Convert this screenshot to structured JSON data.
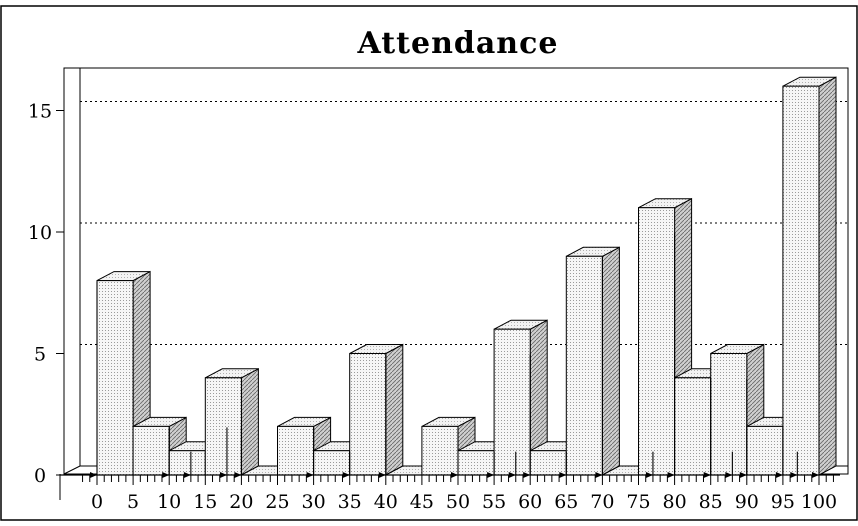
{
  "chart_data": {
    "type": "bar",
    "title": "Attendance",
    "xlabel": "",
    "ylabel": "",
    "x_ticks": [
      "0",
      "5",
      "10",
      "15",
      "20",
      "25",
      "30",
      "35",
      "40",
      "45",
      "50",
      "55",
      "60",
      "65",
      "70",
      "75",
      "80",
      "85",
      "90",
      "95",
      "100"
    ],
    "y_ticks": [
      "0",
      "5",
      "10",
      "15"
    ],
    "xlim": [
      0,
      100
    ],
    "ylim": [
      0,
      16
    ],
    "grid": "horizontal dotted",
    "bar_width": 5,
    "bars": [
      {
        "x": 0,
        "value": 8
      },
      {
        "x": 5,
        "value": 2
      },
      {
        "x": 10,
        "value": 1
      },
      {
        "x": 15,
        "value": 4
      },
      {
        "x": 20,
        "value": 0
      },
      {
        "x": 25,
        "value": 2
      },
      {
        "x": 30,
        "value": 1
      },
      {
        "x": 35,
        "value": 5
      },
      {
        "x": 40,
        "value": 0
      },
      {
        "x": 45,
        "value": 2
      },
      {
        "x": 50,
        "value": 1
      },
      {
        "x": 55,
        "value": 6
      },
      {
        "x": 60,
        "value": 1
      },
      {
        "x": 65,
        "value": 9
      },
      {
        "x": 70,
        "value": 0
      },
      {
        "x": 75,
        "value": 11
      },
      {
        "x": 80,
        "value": 4
      },
      {
        "x": 85,
        "value": 5
      },
      {
        "x": 90,
        "value": 2
      },
      {
        "x": 95,
        "value": 16
      }
    ],
    "impulses": [
      {
        "x": 0,
        "value": 8
      },
      {
        "x": 10,
        "value": 2
      },
      {
        "x": 13,
        "value": 1
      },
      {
        "x": 18,
        "value": 2
      },
      {
        "x": 20,
        "value": 2
      },
      {
        "x": 30,
        "value": 2
      },
      {
        "x": 35,
        "value": 1
      },
      {
        "x": 40,
        "value": 5
      },
      {
        "x": 50,
        "value": 2
      },
      {
        "x": 55,
        "value": 1
      },
      {
        "x": 58,
        "value": 1
      },
      {
        "x": 60,
        "value": 5
      },
      {
        "x": 65,
        "value": 1
      },
      {
        "x": 70,
        "value": 9
      },
      {
        "x": 77,
        "value": 1
      },
      {
        "x": 80,
        "value": 10
      },
      {
        "x": 85,
        "value": 4
      },
      {
        "x": 88,
        "value": 1
      },
      {
        "x": 90,
        "value": 4
      },
      {
        "x": 95,
        "value": 2
      },
      {
        "x": 97,
        "value": 1
      },
      {
        "x": 100,
        "value": 15
      }
    ],
    "colors": {
      "bar_front": "#f2f2f2",
      "bar_top": "#ececec",
      "bar_side": "#bdbdbd",
      "stroke": "#000000",
      "background": "#ffffff"
    }
  }
}
